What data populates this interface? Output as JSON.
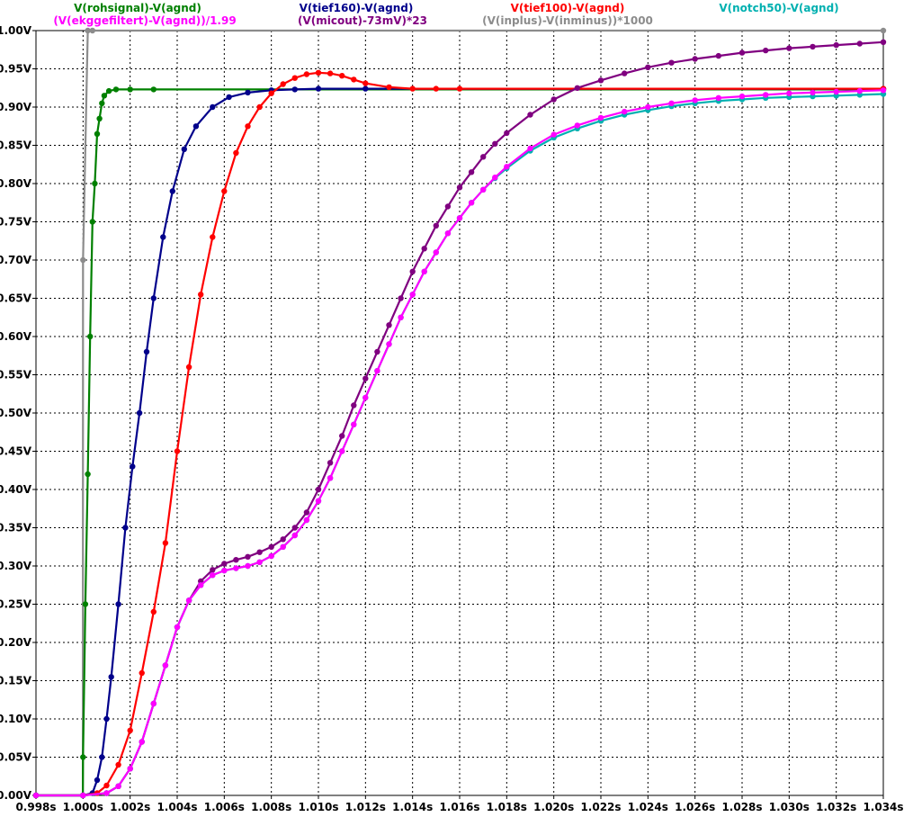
{
  "chart_data": {
    "type": "line",
    "xlabel": "",
    "ylabel": "",
    "xlim": [
      0.998,
      1.034
    ],
    "ylim": [
      0.0,
      1.0
    ],
    "x_ticks": [
      "0.998s",
      "1.000s",
      "1.002s",
      "1.004s",
      "1.006s",
      "1.008s",
      "1.010s",
      "1.012s",
      "1.014s",
      "1.016s",
      "1.018s",
      "1.020s",
      "1.022s",
      "1.024s",
      "1.026s",
      "1.028s",
      "1.030s",
      "1.032s",
      "1.034s"
    ],
    "y_ticks": [
      "0.00V",
      "0.05V",
      "0.10V",
      "0.15V",
      "0.20V",
      "0.25V",
      "0.30V",
      "0.35V",
      "0.40V",
      "0.45V",
      "0.50V",
      "0.55V",
      "0.60V",
      "0.65V",
      "0.70V",
      "0.75V",
      "0.80V",
      "0.85V",
      "0.90V",
      "0.95V",
      "1.00V"
    ],
    "grid": true,
    "series": [
      {
        "name": "V(inplus)-V(inminus)*1000",
        "color": "#8c8c8c",
        "x": [
          0.998,
          0.99999,
          1.0,
          1.0002,
          1.0004,
          1.034
        ],
        "y": [
          0.0,
          0.0,
          0.7,
          1.0,
          1.0,
          1.0
        ]
      },
      {
        "name": "V(rohsignal)-V(agnd)",
        "color": "#008000",
        "x": [
          0.998,
          0.99999,
          1.0,
          1.0001,
          1.0002,
          1.0003,
          1.0004,
          1.0005,
          1.0006,
          1.0007,
          1.0008,
          1.0009,
          1.0011,
          1.0014,
          1.002,
          1.003,
          1.034
        ],
        "y": [
          0.0,
          0.0,
          0.05,
          0.25,
          0.42,
          0.6,
          0.75,
          0.8,
          0.865,
          0.885,
          0.905,
          0.915,
          0.921,
          0.923,
          0.923,
          0.923,
          0.923
        ]
      },
      {
        "name": "V(tief160)-V(agnd)",
        "color": "#00008b",
        "x": [
          0.998,
          1.0,
          1.0004,
          1.0006,
          1.0008,
          1.001,
          1.0012,
          1.0015,
          1.0018,
          1.0021,
          1.0024,
          1.0027,
          1.003,
          1.0034,
          1.0038,
          1.0043,
          1.0048,
          1.0055,
          1.0062,
          1.007,
          1.008,
          1.009,
          1.01,
          1.012,
          1.034
        ],
        "y": [
          0.0,
          0.0,
          0.003,
          0.02,
          0.05,
          0.1,
          0.155,
          0.25,
          0.35,
          0.43,
          0.5,
          0.58,
          0.65,
          0.73,
          0.79,
          0.845,
          0.875,
          0.9,
          0.913,
          0.919,
          0.922,
          0.923,
          0.924,
          0.924,
          0.924
        ]
      },
      {
        "name": "V(tief100)-V(agnd)",
        "color": "#ff0000",
        "x": [
          0.998,
          1.0,
          1.0006,
          1.001,
          1.0015,
          1.002,
          1.0025,
          1.003,
          1.0035,
          1.004,
          1.0045,
          1.005,
          1.0055,
          1.006,
          1.0065,
          1.007,
          1.0075,
          1.008,
          1.0085,
          1.009,
          1.0095,
          1.01,
          1.0105,
          1.011,
          1.0115,
          1.012,
          1.013,
          1.014,
          1.015,
          1.016,
          1.034
        ],
        "y": [
          0.0,
          0.0,
          0.003,
          0.013,
          0.04,
          0.085,
          0.16,
          0.24,
          0.33,
          0.45,
          0.56,
          0.655,
          0.73,
          0.79,
          0.84,
          0.875,
          0.9,
          0.918,
          0.93,
          0.938,
          0.943,
          0.945,
          0.944,
          0.941,
          0.936,
          0.931,
          0.926,
          0.924,
          0.924,
          0.924,
          0.924
        ]
      },
      {
        "name": "V(micout)-73mV)*23",
        "color": "#800080",
        "x": [
          0.998,
          1.0,
          1.001,
          1.0015,
          1.002,
          1.0025,
          1.003,
          1.0035,
          1.004,
          1.0045,
          1.005,
          1.0055,
          1.006,
          1.0065,
          1.007,
          1.0075,
          1.008,
          1.0085,
          1.009,
          1.0095,
          1.01,
          1.0105,
          1.011,
          1.0115,
          1.012,
          1.0125,
          1.013,
          1.0135,
          1.014,
          1.0145,
          1.015,
          1.0155,
          1.016,
          1.0165,
          1.017,
          1.0175,
          1.018,
          1.019,
          1.02,
          1.021,
          1.022,
          1.023,
          1.024,
          1.025,
          1.026,
          1.027,
          1.028,
          1.029,
          1.03,
          1.031,
          1.032,
          1.033,
          1.034
        ],
        "y": [
          0.0,
          0.0,
          0.003,
          0.012,
          0.035,
          0.07,
          0.12,
          0.17,
          0.22,
          0.255,
          0.28,
          0.295,
          0.303,
          0.308,
          0.312,
          0.318,
          0.325,
          0.335,
          0.35,
          0.37,
          0.4,
          0.435,
          0.47,
          0.51,
          0.545,
          0.58,
          0.615,
          0.65,
          0.685,
          0.715,
          0.745,
          0.77,
          0.795,
          0.815,
          0.835,
          0.852,
          0.866,
          0.89,
          0.91,
          0.925,
          0.935,
          0.944,
          0.952,
          0.958,
          0.963,
          0.967,
          0.971,
          0.974,
          0.977,
          0.979,
          0.981,
          0.983,
          0.985
        ]
      },
      {
        "name": "V(notch50)-V(agnd)",
        "color": "#00b0b0",
        "x": [
          0.998,
          1.0,
          1.001,
          1.0015,
          1.002,
          1.0025,
          1.003,
          1.0035,
          1.004,
          1.0045,
          1.005,
          1.0055,
          1.006,
          1.0065,
          1.007,
          1.0075,
          1.008,
          1.0085,
          1.009,
          1.0095,
          1.01,
          1.0105,
          1.011,
          1.0115,
          1.012,
          1.0125,
          1.013,
          1.0135,
          1.014,
          1.0145,
          1.015,
          1.0155,
          1.016,
          1.0165,
          1.017,
          1.0175,
          1.018,
          1.019,
          1.02,
          1.021,
          1.022,
          1.023,
          1.024,
          1.025,
          1.026,
          1.027,
          1.028,
          1.029,
          1.03,
          1.031,
          1.032,
          1.033,
          1.034
        ],
        "y": [
          0.0,
          0.0,
          0.003,
          0.012,
          0.035,
          0.07,
          0.12,
          0.17,
          0.22,
          0.255,
          0.275,
          0.288,
          0.294,
          0.297,
          0.3,
          0.305,
          0.313,
          0.325,
          0.34,
          0.36,
          0.385,
          0.415,
          0.45,
          0.485,
          0.52,
          0.555,
          0.59,
          0.625,
          0.655,
          0.685,
          0.71,
          0.735,
          0.755,
          0.775,
          0.792,
          0.807,
          0.82,
          0.843,
          0.86,
          0.872,
          0.882,
          0.89,
          0.896,
          0.901,
          0.905,
          0.908,
          0.91,
          0.912,
          0.913,
          0.914,
          0.915,
          0.916,
          0.917
        ]
      },
      {
        "name": "(V(ekggefiltert)-V(agnd))/1.99",
        "color": "#ff00ff",
        "x": [
          0.998,
          1.0,
          1.001,
          1.0015,
          1.002,
          1.0025,
          1.003,
          1.0035,
          1.004,
          1.0045,
          1.005,
          1.0055,
          1.006,
          1.0065,
          1.007,
          1.0075,
          1.008,
          1.0085,
          1.009,
          1.0095,
          1.01,
          1.0105,
          1.011,
          1.0115,
          1.012,
          1.0125,
          1.013,
          1.0135,
          1.014,
          1.0145,
          1.015,
          1.0155,
          1.016,
          1.0165,
          1.017,
          1.0175,
          1.018,
          1.019,
          1.02,
          1.021,
          1.022,
          1.023,
          1.024,
          1.025,
          1.026,
          1.027,
          1.028,
          1.029,
          1.03,
          1.031,
          1.032,
          1.033,
          1.034
        ],
        "y": [
          0.0,
          0.0,
          0.003,
          0.012,
          0.035,
          0.07,
          0.12,
          0.17,
          0.22,
          0.255,
          0.275,
          0.288,
          0.294,
          0.297,
          0.3,
          0.305,
          0.313,
          0.325,
          0.34,
          0.36,
          0.385,
          0.415,
          0.45,
          0.485,
          0.52,
          0.555,
          0.59,
          0.625,
          0.655,
          0.685,
          0.71,
          0.735,
          0.755,
          0.775,
          0.792,
          0.808,
          0.822,
          0.846,
          0.864,
          0.876,
          0.886,
          0.894,
          0.9,
          0.905,
          0.909,
          0.912,
          0.914,
          0.916,
          0.918,
          0.919,
          0.92,
          0.921,
          0.922
        ]
      }
    ]
  },
  "legend": {
    "rohsignal": "V(rohsignal)-V(agnd)",
    "ekggefiltert": "(V(ekggefiltert)-V(agnd))/1.99",
    "tief160": "V(tief160)-V(agnd)",
    "micout": "(V(micout)-73mV)*23",
    "inplus": "(V(inplus)-V(inminus))*1000",
    "tief100": "V(tief100)-V(agnd)",
    "notch50": "V(notch50)-V(agnd)"
  }
}
